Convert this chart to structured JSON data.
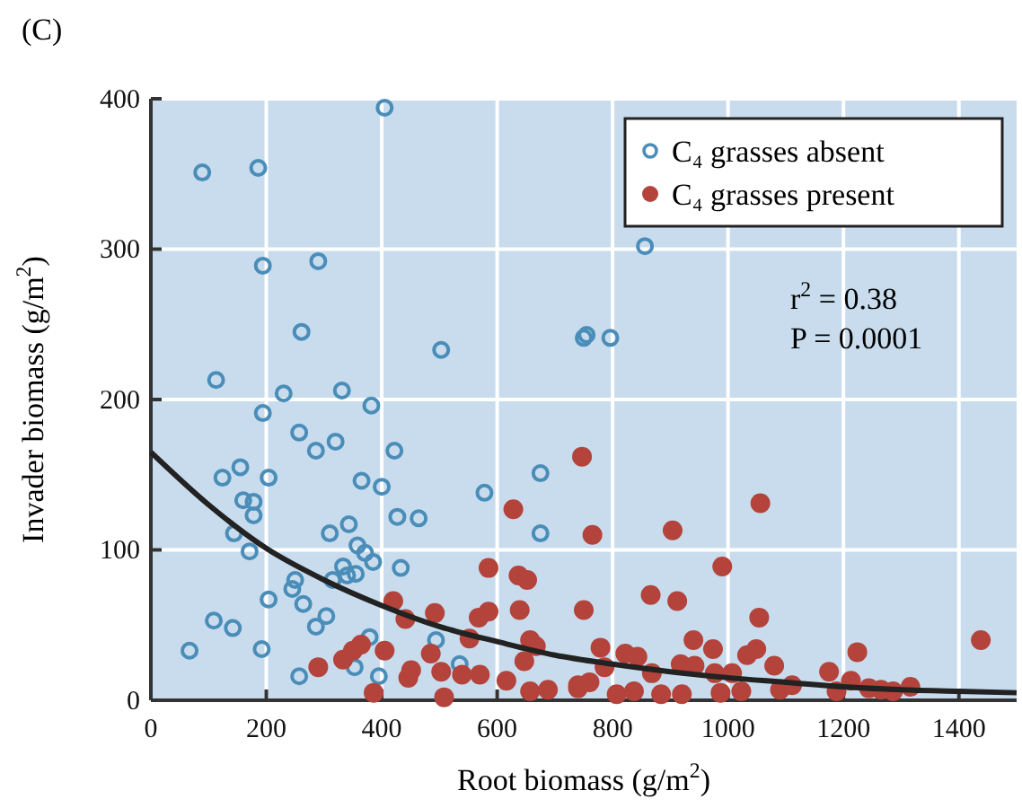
{
  "chart_data": {
    "type": "scatter",
    "title": "(C)",
    "xlabel": "Root biomass (g/m$^{2}$)",
    "ylabel": "Invader biomass (g/m$^{2}$)",
    "xlim": [
      0,
      1500
    ],
    "ylim": [
      0,
      400
    ],
    "xticks": [
      0,
      200,
      400,
      600,
      800,
      1000,
      1200,
      1400
    ],
    "yticks": [
      0,
      100,
      200,
      300,
      400
    ],
    "grid": true,
    "legend": "top right",
    "annotations": [
      "r$^{2}$ = 0.38",
      "P = 0.0001"
    ],
    "series": [
      {
        "name": "C₄ grasses absent",
        "color": "#4a8db8",
        "marker": "circle",
        "x": [
          113,
          230,
          331,
          382,
          194,
          257,
          286,
          320,
          422,
          155,
          124,
          204,
          160,
          178,
          178,
          144,
          171,
          365,
          400,
          578,
          675,
          675,
          427,
          464,
          310,
          343,
          358,
          371,
          385,
          433,
          333,
          315,
          340,
          355,
          250,
          245,
          264,
          204,
          304,
          286,
          109,
          142,
          67,
          192,
          379,
          257,
          353,
          395,
          494,
          535,
          89,
          186,
          405,
          194,
          290,
          261,
          503,
          750,
          856,
          755,
          796
        ],
        "values": [
          213,
          204,
          206,
          196,
          191,
          178,
          166,
          172,
          166,
          155,
          148,
          148,
          133,
          132,
          123,
          111,
          99,
          146,
          142,
          138,
          151,
          111,
          122,
          121,
          111,
          117,
          103,
          98,
          92,
          88,
          89,
          80,
          83,
          84,
          80,
          74,
          64,
          67,
          56,
          49,
          53,
          48,
          33,
          34,
          42,
          16,
          22,
          16,
          40,
          24,
          351,
          354,
          394,
          289,
          292,
          245,
          233,
          241,
          302,
          243,
          241
        ]
      },
      {
        "name": "C₄ grasses present",
        "color": "#b3433b",
        "marker": "circle",
        "x": [
          747,
          628,
          765,
          585,
          637,
          652,
          420,
          441,
          492,
          568,
          585,
          639,
          750,
          552,
          657,
          667,
          647,
          405,
          485,
          364,
          350,
          333,
          290,
          451,
          503,
          539,
          570,
          616,
          446,
          386,
          508,
          657,
          688,
          740,
          904,
          1056,
          990,
          866,
          912,
          1054,
          940,
          974,
          779,
          822,
          843,
          1033,
          1049,
          918,
          942,
          1080,
          1224,
          1438,
          1175,
          1213,
          977,
          1007,
          868,
          786,
          740,
          760,
          807,
          837,
          884,
          920,
          987,
          1023,
          1090,
          1111,
          1188,
          1265,
          1286,
          1316,
          1244
        ],
        "values": [
          162,
          127,
          110,
          88,
          83,
          80,
          66,
          54,
          58,
          55,
          59,
          60,
          60,
          41,
          40,
          36,
          26,
          33,
          31,
          37,
          33,
          27,
          22,
          20,
          19,
          17,
          17,
          13,
          15,
          5,
          2,
          6,
          7,
          8,
          113,
          131,
          89,
          70,
          66,
          55,
          40,
          34,
          35,
          31,
          29,
          30,
          34,
          24,
          23,
          23,
          32,
          40,
          19,
          13,
          18,
          18,
          18,
          22,
          10,
          12,
          4,
          6,
          4,
          4,
          5,
          6,
          7,
          10,
          6,
          7,
          6,
          9,
          8
        ]
      },
      {
        "type": "line",
        "color": "#222222",
        "marker": "none",
        "x": [
          0,
          100,
          200,
          300,
          400,
          500,
          600,
          700,
          800,
          900,
          1000,
          1100,
          1200,
          1300,
          1400,
          1500
        ],
        "values": [
          165,
          130,
          101,
          80,
          63,
          49,
          39,
          30,
          24,
          19,
          15,
          12,
          9,
          7,
          6,
          5
        ]
      }
    ]
  }
}
